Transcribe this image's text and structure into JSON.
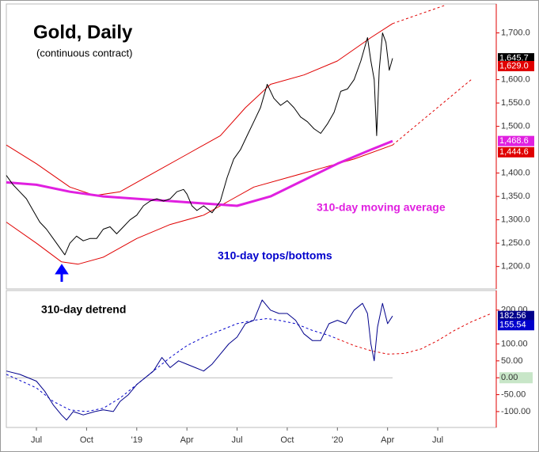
{
  "chart_data": [
    {
      "type": "line",
      "title": "Gold, Daily",
      "subtitle": "(continuous contract)",
      "annotations": [
        "310-day moving average",
        "310-day tops/bottoms"
      ],
      "xlim": [
        4.2,
        33.5
      ],
      "ylim": [
        1152,
        1762
      ],
      "yticks": [
        {
          "value": 1200,
          "label": "1,200.0"
        },
        {
          "value": 1250,
          "label": "1,250.0"
        },
        {
          "value": 1300,
          "label": "1,300.0"
        },
        {
          "value": 1350,
          "label": "1,350.0"
        },
        {
          "value": 1400,
          "label": "1,400.0"
        },
        {
          "value": 1500,
          "label": "1,500.0"
        },
        {
          "value": 1550,
          "label": "1,550.0"
        },
        {
          "value": 1600,
          "label": "1,600.0"
        },
        {
          "value": 1700,
          "label": "1,700.0"
        }
      ],
      "series": [
        {
          "color": "#e00000",
          "width": 1,
          "dash": false,
          "x": [
            4.2,
            6,
            8,
            9.5,
            11,
            13,
            15,
            17,
            18.5,
            20,
            22,
            24,
            26,
            27.3
          ],
          "values": [
            1460,
            1420,
            1370,
            1352,
            1360,
            1400,
            1440,
            1480,
            1540,
            1590,
            1610,
            1640,
            1690,
            1720
          ]
        },
        {
          "color": "#e00000",
          "width": 1,
          "dash": true,
          "x": [
            27.3,
            30.5
          ],
          "values": [
            1720,
            1760
          ]
        },
        {
          "color": "#e00000",
          "width": 1,
          "dash": false,
          "x": [
            4.2,
            6,
            7.5,
            8.5,
            10,
            12,
            14,
            16,
            17.5,
            19,
            21,
            23,
            25,
            27.3
          ],
          "values": [
            1295,
            1250,
            1210,
            1205,
            1220,
            1260,
            1290,
            1310,
            1340,
            1370,
            1390,
            1410,
            1430,
            1460
          ]
        },
        {
          "color": "#e00000",
          "width": 1,
          "dash": true,
          "x": [
            27.3,
            32
          ],
          "values": [
            1460,
            1600
          ]
        },
        {
          "color": "#e020e0",
          "width": 3,
          "dash": false,
          "x": [
            4.2,
            6,
            8,
            10,
            12,
            14,
            16,
            18,
            20,
            22,
            24,
            26,
            27.3
          ],
          "values": [
            1380,
            1375,
            1360,
            1350,
            1345,
            1340,
            1335,
            1330,
            1350,
            1385,
            1420,
            1450,
            1468.6
          ]
        },
        {
          "color": "#000000",
          "width": 1,
          "dash": false,
          "x": [
            4.2,
            4.6,
            5.0,
            5.4,
            5.8,
            6.2,
            6.6,
            7.0,
            7.4,
            7.7,
            8.0,
            8.4,
            8.8,
            9.2,
            9.6,
            10.0,
            10.4,
            10.8,
            11.2,
            11.6,
            12.0,
            12.4,
            12.8,
            13.2,
            13.6,
            14.0,
            14.4,
            14.8,
            15.0,
            15.3,
            15.6,
            16.0,
            16.5,
            17.0,
            17.4,
            17.8,
            18.2,
            18.6,
            19.0,
            19.4,
            19.8,
            20.2,
            20.6,
            21.0,
            21.4,
            21.8,
            22.2,
            22.6,
            23.0,
            23.4,
            23.8,
            24.2,
            24.6,
            25.0,
            25.4,
            25.8,
            26.0,
            26.2,
            26.35,
            26.5,
            26.7,
            26.9,
            27.1,
            27.3
          ],
          "values": [
            1395,
            1375,
            1360,
            1345,
            1320,
            1295,
            1280,
            1260,
            1240,
            1225,
            1250,
            1265,
            1255,
            1260,
            1260,
            1280,
            1285,
            1270,
            1285,
            1300,
            1310,
            1330,
            1340,
            1345,
            1340,
            1345,
            1360,
            1365,
            1355,
            1330,
            1320,
            1330,
            1315,
            1340,
            1390,
            1430,
            1450,
            1480,
            1510,
            1540,
            1590,
            1560,
            1545,
            1555,
            1540,
            1520,
            1510,
            1495,
            1485,
            1505,
            1530,
            1575,
            1580,
            1600,
            1640,
            1690,
            1640,
            1600,
            1480,
            1620,
            1700,
            1680,
            1620,
            1645.7
          ]
        }
      ],
      "tags": [
        {
          "value": 1645.7,
          "label": "1,645.7",
          "color": "#000000"
        },
        {
          "value": 1629.0,
          "label": "1,629.0",
          "color": "#e00000"
        },
        {
          "value": 1468.6,
          "label": "1,468.6",
          "color": "#e020e0"
        },
        {
          "value": 1444.6,
          "label": "1,444.6",
          "color": "#e00000"
        }
      ]
    },
    {
      "type": "line",
      "title": "310-day detrend",
      "xlim": [
        4.2,
        33.5
      ],
      "ylim": [
        -147,
        258
      ],
      "xticks": [
        {
          "value": 6,
          "label": "Jul"
        },
        {
          "value": 9,
          "label": "Oct"
        },
        {
          "value": 12,
          "label": "'19"
        },
        {
          "value": 15,
          "label": "Apr"
        },
        {
          "value": 18,
          "label": "Jul"
        },
        {
          "value": 21,
          "label": "Oct"
        },
        {
          "value": 24,
          "label": "'20"
        },
        {
          "value": 27,
          "label": "Apr"
        },
        {
          "value": 30,
          "label": "Jul"
        }
      ],
      "yticks": [
        {
          "value": -100,
          "label": "-100.00"
        },
        {
          "value": -50,
          "label": "-50.00"
        },
        {
          "value": 0,
          "label": "0.00",
          "bg": "#c8e6c8"
        },
        {
          "value": 50,
          "label": "50.00"
        },
        {
          "value": 100,
          "label": "100.00"
        },
        {
          "value": 200,
          "label": "200.00"
        }
      ],
      "zero_line": true,
      "series": [
        {
          "color": "#0000cc",
          "width": 1,
          "dash": true,
          "x": [
            4.2,
            6,
            7,
            8,
            9,
            10,
            11,
            12,
            13,
            14,
            15,
            16,
            17,
            18,
            19,
            19.8,
            20.5,
            21.5,
            22.5,
            23.5,
            24
          ],
          "values": [
            10,
            -30,
            -70,
            -95,
            -100,
            -90,
            -60,
            -20,
            20,
            60,
            95,
            120,
            140,
            160,
            170,
            175,
            170,
            160,
            140,
            125,
            115
          ]
        },
        {
          "color": "#e00000",
          "width": 1,
          "dash": true,
          "x": [
            24,
            25,
            26,
            27,
            28,
            29,
            30,
            31,
            32,
            33.2
          ],
          "values": [
            115,
            95,
            80,
            70,
            72,
            85,
            110,
            140,
            165,
            190
          ]
        },
        {
          "color": "#00008b",
          "width": 1,
          "dash": false,
          "x": [
            4.2,
            5,
            6,
            6.5,
            7,
            7.5,
            7.8,
            8.2,
            8.8,
            9.5,
            10,
            10.6,
            11,
            11.5,
            12,
            12.5,
            13,
            13.5,
            14,
            14.5,
            15,
            15.5,
            16,
            16.5,
            17,
            17.5,
            18,
            18.5,
            19,
            19.5,
            20,
            20.5,
            21,
            21.5,
            22,
            22.5,
            23,
            23.5,
            24,
            24.5,
            25,
            25.5,
            25.8,
            26.0,
            26.2,
            26.4,
            26.7,
            27.0,
            27.3
          ],
          "values": [
            20,
            10,
            -10,
            -40,
            -80,
            -110,
            -125,
            -100,
            -110,
            -100,
            -95,
            -100,
            -70,
            -50,
            -20,
            0,
            20,
            60,
            30,
            50,
            40,
            30,
            20,
            40,
            70,
            100,
            120,
            160,
            170,
            230,
            200,
            190,
            190,
            170,
            130,
            110,
            110,
            160,
            170,
            160,
            200,
            220,
            190,
            100,
            50,
            150,
            220,
            160,
            182.56
          ]
        }
      ],
      "tags": [
        {
          "value": 182.56,
          "label": "182.56",
          "color": "#00008b"
        },
        {
          "value": 155.54,
          "label": "155.54",
          "color": "#0000cc"
        }
      ]
    }
  ]
}
